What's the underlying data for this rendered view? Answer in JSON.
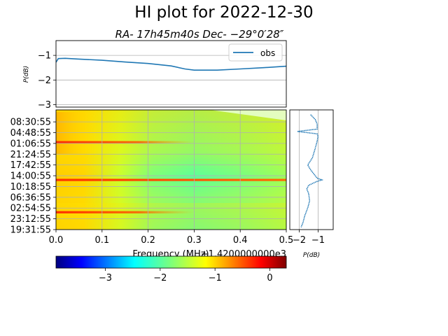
{
  "title": "HI plot for 2022-12-30",
  "subtitle": "RA- 17h45m40s Dec- −29°0′28″",
  "chart_data": [
    {
      "type": "line",
      "name": "spectrum",
      "ylabel": "P(dB)",
      "xlim": [
        0.0,
        0.5
      ],
      "ylim": [
        -3.1,
        -0.4
      ],
      "yticks": [
        "−1",
        "−2",
        "−3"
      ],
      "ytick_values": [
        -1,
        -2,
        -3
      ],
      "grid": true,
      "legend": {
        "position": "top-right",
        "entries": [
          "obs"
        ]
      },
      "series": [
        {
          "name": "obs",
          "color": "#1f77b4",
          "x": [
            0.0,
            0.005,
            0.02,
            0.05,
            0.1,
            0.15,
            0.2,
            0.25,
            0.28,
            0.3,
            0.35,
            0.4,
            0.45,
            0.5
          ],
          "y": [
            -1.28,
            -1.13,
            -1.12,
            -1.15,
            -1.2,
            -1.27,
            -1.33,
            -1.43,
            -1.55,
            -1.6,
            -1.6,
            -1.55,
            -1.5,
            -1.44
          ]
        }
      ]
    },
    {
      "type": "heatmap",
      "name": "waterfall",
      "xlabel": "Frequency (MHz)",
      "x_offset_label": "+1.4200000000e3",
      "xlim": [
        0.0,
        0.5
      ],
      "xticks": [
        "0.0",
        "0.1",
        "0.2",
        "0.3",
        "0.4",
        "0.5"
      ],
      "xtick_values": [
        0.0,
        0.1,
        0.2,
        0.3,
        0.4,
        0.5
      ],
      "yticks": [
        "08:30:55",
        "04:48:55",
        "01:06:55",
        "21:24:55",
        "17:42:55",
        "14:00:55",
        "10:18:55",
        "06:36:55",
        "02:54:55",
        "23:12:55",
        "19:31:55"
      ],
      "grid": true,
      "colormap": "jet",
      "color_range": [
        -3.9,
        0.3
      ],
      "bands": [
        {
          "row_fraction": 0.27,
          "x_end": 0.3,
          "value": 0.0
        },
        {
          "row_fraction": 0.585,
          "x_end": 0.5,
          "value": 0.1
        },
        {
          "row_fraction": 0.855,
          "x_end": 0.3,
          "value": -0.3
        }
      ]
    },
    {
      "type": "line",
      "name": "time-profile",
      "xlabel": "P(dB)",
      "xlim": [
        -2.5,
        -0.2
      ],
      "xticks": [
        "−2",
        "−1"
      ],
      "xtick_values": [
        -2,
        -1
      ],
      "grid": true,
      "series": [
        {
          "name": "",
          "color": "#1f77b4",
          "row_fraction": [
            0.04,
            0.08,
            0.12,
            0.16,
            0.18,
            0.2,
            0.22,
            0.26,
            0.32,
            0.4,
            0.46,
            0.5,
            0.54,
            0.57,
            0.585,
            0.6,
            0.63,
            0.66,
            0.7,
            0.76,
            0.82,
            0.88,
            0.94,
            0.98
          ],
          "values": [
            -1.4,
            -1.15,
            -1.05,
            -1.05,
            -2.1,
            -1.05,
            -1.0,
            -1.05,
            -1.15,
            -1.3,
            -1.55,
            -1.4,
            -1.2,
            -1.05,
            -0.8,
            -1.1,
            -1.5,
            -1.6,
            -1.5,
            -1.45,
            -1.55,
            -1.7,
            -1.8,
            -1.9
          ]
        }
      ]
    },
    {
      "type": "colorbar",
      "name": "colorbar",
      "colormap": "jet",
      "range": [
        -3.9,
        0.3
      ],
      "ticks": [
        "−3",
        "−2",
        "−1",
        "0"
      ],
      "tick_values": [
        -3,
        -2,
        -1,
        0
      ]
    }
  ]
}
